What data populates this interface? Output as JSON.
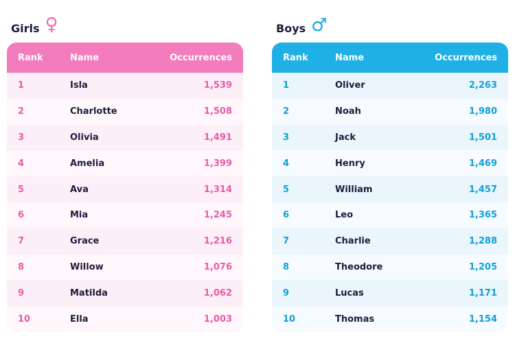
{
  "girls": {
    "title": "Girls",
    "symbol": "♀",
    "columns": {
      "rank": "Rank",
      "name": "Name",
      "occurrences": "Occurrences"
    },
    "rows": [
      {
        "rank": "1",
        "name": "Isla",
        "occurrences": "1,539"
      },
      {
        "rank": "2",
        "name": "Charlotte",
        "occurrences": "1,508"
      },
      {
        "rank": "3",
        "name": "Olivia",
        "occurrences": "1,491"
      },
      {
        "rank": "4",
        "name": "Amelia",
        "occurrences": "1,399"
      },
      {
        "rank": "5",
        "name": "Ava",
        "occurrences": "1,314"
      },
      {
        "rank": "6",
        "name": "Mia",
        "occurrences": "1,245"
      },
      {
        "rank": "7",
        "name": "Grace",
        "occurrences": "1,216"
      },
      {
        "rank": "8",
        "name": "Willow",
        "occurrences": "1,076"
      },
      {
        "rank": "9",
        "name": "Matilda",
        "occurrences": "1,062"
      },
      {
        "rank": "10",
        "name": "Ella",
        "occurrences": "1,003"
      }
    ]
  },
  "boys": {
    "title": "Boys",
    "symbol": "♂",
    "columns": {
      "rank": "Rank",
      "name": "Name",
      "occurrences": "Occurrences"
    },
    "rows": [
      {
        "rank": "1",
        "name": "Oliver",
        "occurrences": "2,263"
      },
      {
        "rank": "2",
        "name": "Noah",
        "occurrences": "1,980"
      },
      {
        "rank": "3",
        "name": "Jack",
        "occurrences": "1,501"
      },
      {
        "rank": "4",
        "name": "Henry",
        "occurrences": "1,469"
      },
      {
        "rank": "5",
        "name": "William",
        "occurrences": "1,457"
      },
      {
        "rank": "6",
        "name": "Leo",
        "occurrences": "1,365"
      },
      {
        "rank": "7",
        "name": "Charlie",
        "occurrences": "1,288"
      },
      {
        "rank": "8",
        "name": "Theodore",
        "occurrences": "1,205"
      },
      {
        "rank": "9",
        "name": "Lucas",
        "occurrences": "1,171"
      },
      {
        "rank": "10",
        "name": "Thomas",
        "occurrences": "1,154"
      }
    ]
  },
  "colors": {
    "girls_accent": "#f27cbc",
    "boys_accent": "#1fb0e6"
  }
}
